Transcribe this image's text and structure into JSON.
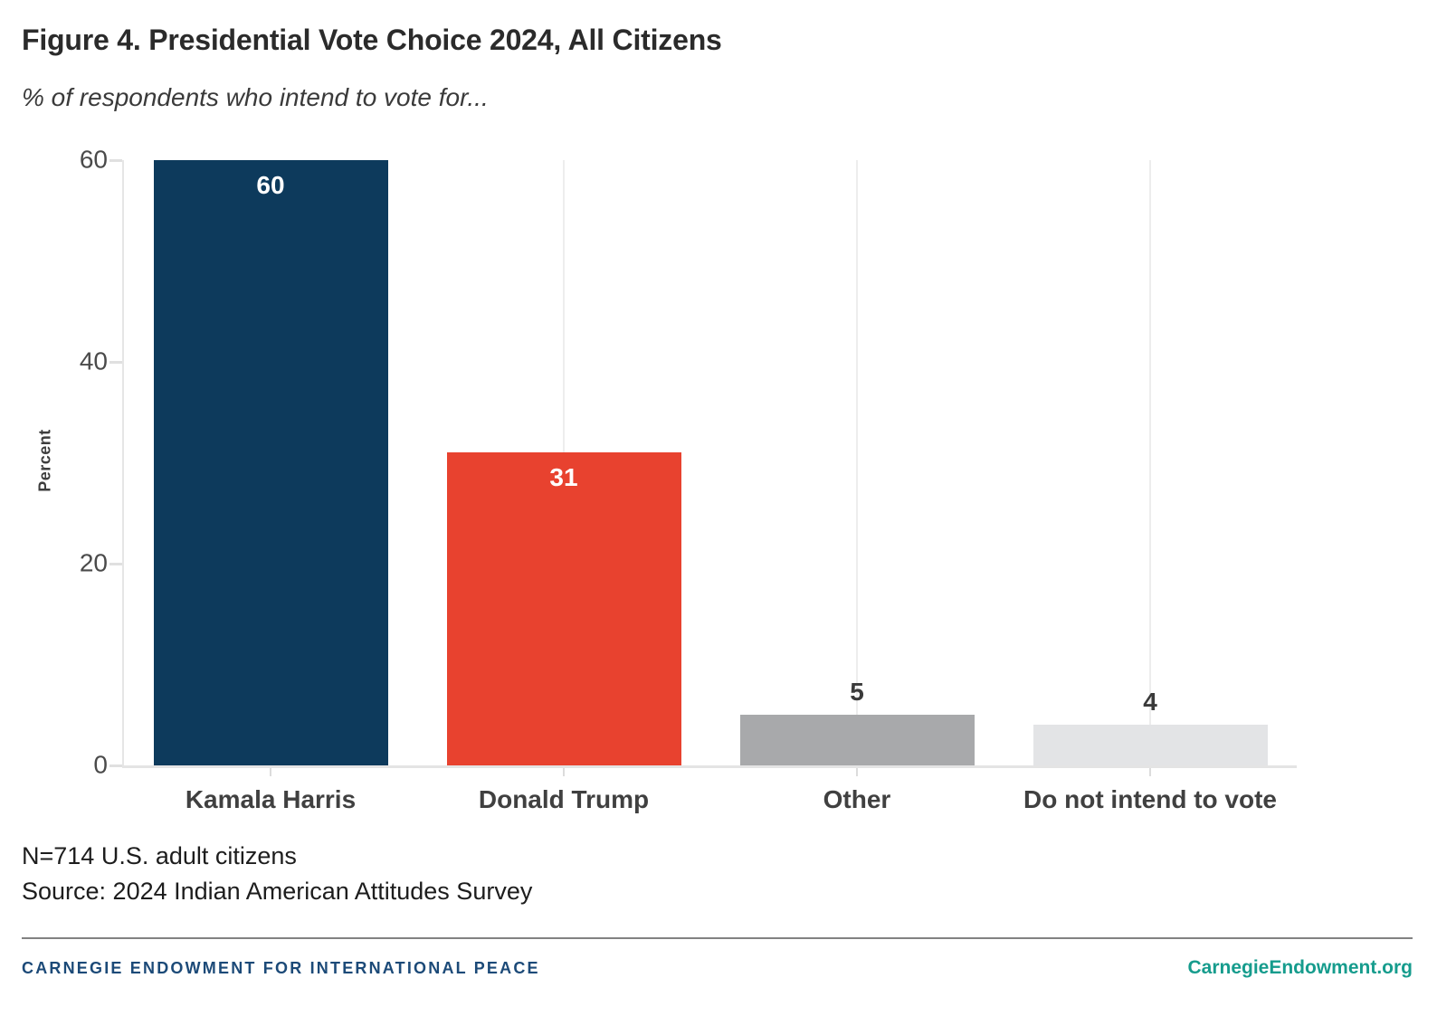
{
  "chart_data": {
    "type": "bar",
    "title": "Figure 4. Presidential Vote Choice 2024, All Citizens",
    "subtitle": "% of respondents who intend to vote for...",
    "categories": [
      "Kamala Harris",
      "Donald Trump",
      "Other",
      "Do not intend to vote"
    ],
    "values": [
      60,
      31,
      5,
      4
    ],
    "bar_colors": [
      "#0d3a5c",
      "#e8422f",
      "#a8a9ab",
      "#e3e4e6"
    ],
    "value_label_inside": [
      true,
      true,
      false,
      false
    ],
    "xlabel": "",
    "ylabel": "Percent",
    "yticks": [
      0,
      20,
      40,
      60
    ],
    "ylim": [
      0,
      60
    ],
    "grid": "vertical category gridlines, light gray",
    "legend": "none"
  },
  "notes": {
    "sample_line": "N=714 U.S. adult citizens",
    "source_line": "Source: 2024 Indian American Attitudes Survey"
  },
  "footer": {
    "org": "CARNEGIE ENDOWMENT FOR INTERNATIONAL PEACE",
    "org_color": "#1c4a78",
    "site": "CarnegieEndowment.org",
    "site_color": "#169c8d"
  }
}
